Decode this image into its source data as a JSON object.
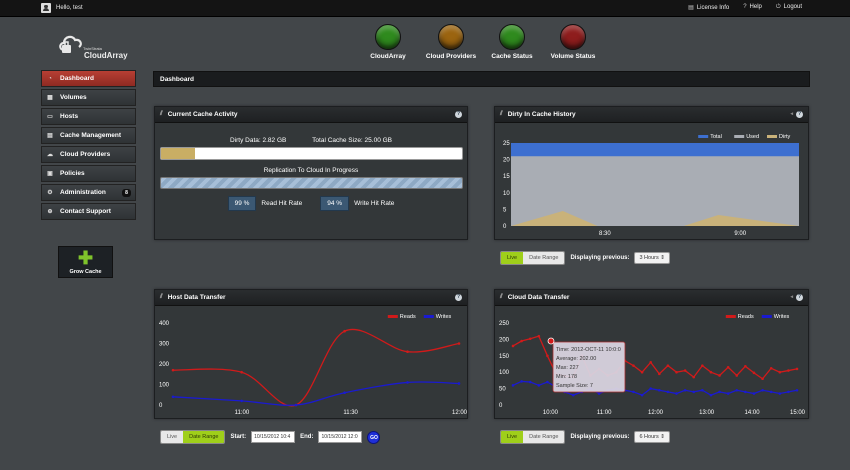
{
  "topbar": {
    "greeting": "Hello, test",
    "links": [
      {
        "label": "License Info",
        "icon": "license-icon"
      },
      {
        "label": "Help",
        "icon": "help-icon"
      },
      {
        "label": "Logout",
        "icon": "logout-icon"
      }
    ]
  },
  "logo": {
    "small": "TwinStrata",
    "brand": "CloudArray"
  },
  "status_lights": [
    {
      "label": "CloudArray",
      "color": "#2f8a1e"
    },
    {
      "label": "Cloud Providers",
      "color": "#9b6410"
    },
    {
      "label": "Cache Status",
      "color": "#2f8a1e"
    },
    {
      "label": "Volume Status",
      "color": "#8e1d1d"
    }
  ],
  "sidebar": {
    "items": [
      {
        "label": "Dashboard",
        "icon": "dashboard-icon",
        "active": true
      },
      {
        "label": "Volumes",
        "icon": "volumes-icon"
      },
      {
        "label": "Hosts",
        "icon": "hosts-icon"
      },
      {
        "label": "Cache Management",
        "icon": "cache-icon"
      },
      {
        "label": "Cloud Providers",
        "icon": "cloud-icon"
      },
      {
        "label": "Policies",
        "icon": "policies-icon"
      },
      {
        "label": "Administration",
        "icon": "admin-icon",
        "badge": "8"
      },
      {
        "label": "Contact Support",
        "icon": "support-icon"
      }
    ]
  },
  "grow_cache": {
    "label": "Grow Cache"
  },
  "breadcrumb": "Dashboard",
  "cache_panel": {
    "title": "Current Cache Activity",
    "dirty_data": "Dirty Data: 2.82 GB",
    "total_size": "Total Cache Size: 25.00 GB",
    "dirty_fraction": 0.113,
    "replication_label": "Replication To Cloud In Progress",
    "read_hit": "99 %",
    "read_hit_label": "Read Hit Rate",
    "write_hit": "94 %",
    "write_hit_label": "Write Hit Rate"
  },
  "dirty_panel": {
    "title": "Dirty In Cache History",
    "controls": {
      "live": "Live",
      "range": "Date Range",
      "displaying": "Displaying previous:",
      "select": "3 Hours"
    }
  },
  "host_panel": {
    "title": "Host Data Transfer",
    "controls": {
      "live": "Live",
      "range": "Date Range",
      "start_label": "Start:",
      "start_value": "10/15/2012 10:4",
      "end_label": "End:",
      "end_value": "10/15/2012 12:0",
      "go": "GO"
    }
  },
  "cloud_panel": {
    "title": "Cloud Data Transfer",
    "controls": {
      "live": "Live",
      "range": "Date Range",
      "displaying": "Displaying previous:",
      "select": "6 Hours"
    },
    "tooltip": [
      "Time: 2012-OCT-11 10:0:0",
      "Average: 202.00",
      "Max: 227",
      "Min: 178",
      "Sample Size: 7"
    ]
  },
  "chart_data": [
    {
      "type": "area",
      "title": "Dirty In Cache History",
      "x_ticks": [
        "8:30",
        "9:00"
      ],
      "y_ticks": [
        0,
        5,
        10,
        15,
        20,
        25
      ],
      "ylim": [
        0,
        25
      ],
      "series": [
        {
          "name": "Total",
          "color": "#3d6fd0",
          "x": [
            0,
            1
          ],
          "values": [
            25,
            25
          ]
        },
        {
          "name": "Used",
          "color": "#a9adb4",
          "x": [
            0,
            1
          ],
          "values": [
            21,
            21
          ]
        },
        {
          "name": "Dirty",
          "color": "#c9b27a",
          "x": [
            0,
            0.18,
            0.3,
            0.6,
            0.72,
            1
          ],
          "values": [
            0,
            4.5,
            0,
            0,
            3.3,
            0
          ]
        }
      ],
      "legend": "top-right"
    },
    {
      "type": "line",
      "title": "Host Data Transfer",
      "x_ticks": [
        "11:00",
        "11:30",
        "12:00"
      ],
      "y_ticks": [
        0,
        100,
        200,
        300,
        400
      ],
      "ylim": [
        0,
        400
      ],
      "series": [
        {
          "name": "Reads",
          "color": "#d11a1a",
          "x": [
            0,
            0.24,
            0.43,
            0.6,
            0.82,
            1
          ],
          "values": [
            170,
            160,
            0,
            360,
            260,
            300
          ]
        },
        {
          "name": "Writes",
          "color": "#1a1ad1",
          "x": [
            0,
            0.24,
            0.43,
            0.6,
            0.82,
            1
          ],
          "values": [
            40,
            20,
            0,
            60,
            110,
            105
          ]
        }
      ],
      "legend": "top-right"
    },
    {
      "type": "line",
      "title": "Cloud Data Transfer",
      "x_ticks": [
        "10:00",
        "11:00",
        "12:00",
        "13:00",
        "14:00",
        "15:00"
      ],
      "y_ticks": [
        0,
        50,
        100,
        150,
        200,
        250
      ],
      "ylim": [
        0,
        250
      ],
      "series": [
        {
          "name": "Reads",
          "color": "#d11a1a",
          "values": [
            180,
            195,
            202,
            210,
            150,
            95,
            88,
            86,
            150,
            90,
            110,
            90,
            100,
            135,
            120,
            100,
            130,
            95,
            120,
            100,
            105,
            85,
            120,
            100,
            90,
            115,
            90,
            118,
            98,
            80,
            112,
            100,
            105,
            110
          ]
        },
        {
          "name": "Writes",
          "color": "#1a1ad1",
          "values": [
            60,
            72,
            70,
            60,
            70,
            55,
            40,
            30,
            40,
            50,
            35,
            45,
            50,
            45,
            40,
            30,
            50,
            45,
            40,
            35,
            45,
            40,
            45,
            30,
            40,
            35,
            45,
            40,
            35,
            45,
            40,
            35,
            40,
            45
          ]
        }
      ],
      "legend": "top-right"
    }
  ]
}
